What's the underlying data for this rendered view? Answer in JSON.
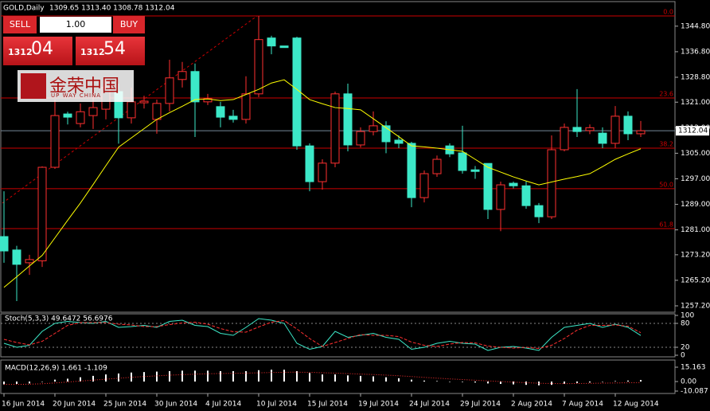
{
  "trade_panel": {
    "sell": "SELL",
    "lot": "1.00",
    "buy": "BUY",
    "bid_prefix": "1312",
    "bid_digits": "04",
    "ask_prefix": "1312",
    "ask_digits": "54"
  },
  "logo": {
    "name": "金荣中国",
    "tagline": "UP WAY CHINA"
  },
  "chart_data": [
    {
      "type": "candlestick",
      "title": "GOLD,Daily",
      "ohlc_text": "1309.65 1313.40 1308.78 1312.04",
      "categories": [
        "16 Jun 2014",
        null,
        null,
        null,
        "20 Jun 2014",
        null,
        null,
        null,
        "25 Jun 2014",
        null,
        null,
        null,
        "30 Jun 2014",
        null,
        null,
        null,
        "4 Jul 2014",
        null,
        null,
        null,
        "10 Jul 2014",
        null,
        null,
        null,
        "15 Jul 2014",
        null,
        null,
        null,
        "19 Jul 2014",
        null,
        null,
        null,
        "24 Jul 2014",
        null,
        null,
        null,
        "29 Jul 2014",
        null,
        null,
        null,
        "2 Aug 2014",
        null,
        null,
        null,
        "7 Aug 2014",
        null,
        null,
        null,
        "12 Aug 2014",
        null,
        null
      ],
      "open": [
        1278.9,
        1274.7,
        1270.7,
        1271.3,
        1300.6,
        1317.3,
        1314.3,
        1316.8,
        1318.8,
        1324.3,
        1316.1,
        1320.8,
        1315.6,
        1320.6,
        1328.1,
        1330.6,
        1321.1,
        1319.6,
        1316.6,
        1315.6,
        1323.6,
        1341.1,
        1338.6,
        1341.1,
        1307.3,
        1296.1,
        1301.9,
        1323.6,
        1307.6,
        1311.8,
        1313.6,
        1309.1,
        1308.1,
        1291.1,
        1298.6,
        1307.3,
        1305.1,
        1299.8,
        1301.8,
        1287.4,
        1295.6,
        1294.8,
        1288.6,
        1285.1,
        1306.1,
        1313.1,
        1312.1,
        1311.3,
        1308.1,
        1316.6,
        1311.1
      ],
      "high": [
        1293.1,
        1276.0,
        1273.2,
        1300.9,
        1321.8,
        1318.0,
        1320.6,
        1323.0,
        1328.0,
        1326.8,
        1325.6,
        1323.0,
        1321.8,
        1334.3,
        1333.6,
        1333.1,
        1323.6,
        1321.1,
        1318.6,
        1329.1,
        1348.0,
        1341.8,
        1338.6,
        1341.5,
        1308.1,
        1303.1,
        1324.3,
        1326.8,
        1313.1,
        1318.1,
        1315.0,
        1310.6,
        1308.6,
        1299.6,
        1304.3,
        1308.1,
        1313.6,
        1301.0,
        1301.8,
        1296.1,
        1296.1,
        1296.1,
        1289.4,
        1310.6,
        1314.3,
        1325.1,
        1314.0,
        1313.1,
        1319.8,
        1318.1,
        1315.1
      ],
      "low": [
        1270.7,
        1258.7,
        1266.9,
        1269.4,
        1300.1,
        1314.0,
        1313.1,
        1312.6,
        1315.6,
        1308.0,
        1314.3,
        1319.0,
        1311.1,
        1318.1,
        1325.6,
        1310.1,
        1320.1,
        1313.1,
        1314.6,
        1314.3,
        1322.6,
        1336.0,
        1338.1,
        1306.1,
        1293.1,
        1293.6,
        1300.6,
        1305.6,
        1306.8,
        1310.6,
        1305.0,
        1306.6,
        1288.1,
        1289.6,
        1297.6,
        1303.8,
        1298.6,
        1297.0,
        1284.4,
        1280.6,
        1294.0,
        1287.6,
        1283.1,
        1284.4,
        1305.6,
        1310.1,
        1311.0,
        1306.6,
        1306.6,
        1309.1,
        1310.1
      ],
      "close": [
        1274.4,
        1270.2,
        1271.7,
        1300.6,
        1316.8,
        1316.3,
        1318.0,
        1319.3,
        1325.6,
        1316.1,
        1321.1,
        1321.3,
        1320.6,
        1328.6,
        1330.6,
        1321.1,
        1322.1,
        1316.3,
        1315.6,
        1323.6,
        1340.6,
        1338.6,
        1338.1,
        1307.3,
        1296.1,
        1301.9,
        1323.6,
        1307.6,
        1311.8,
        1313.6,
        1308.6,
        1308.1,
        1291.1,
        1298.6,
        1303.1,
        1304.8,
        1299.6,
        1299.3,
        1287.4,
        1295.1,
        1294.8,
        1288.6,
        1285.1,
        1306.1,
        1313.1,
        1311.8,
        1313.0,
        1308.1,
        1316.6,
        1311.1,
        1312.04
      ],
      "up_color": "#000000",
      "up_border": "#ff3030",
      "down_color": "#3ce8c8",
      "ma": {
        "color": "#ffff00",
        "values": [
          1263,
          1266.3,
          1269.7,
          1273,
          1278.5,
          1284,
          1289.4,
          1295.2,
          1301.1,
          1306.9,
          1309.8,
          1312.7,
          1315.6,
          1317.7,
          1319.7,
          1321.8,
          1322,
          1321.5,
          1321.8,
          1323.4,
          1325,
          1327,
          1328,
          1325,
          1321.8,
          1320.5,
          1319.3,
          1319,
          1318.6,
          1315.8,
          1313,
          1310.2,
          1307.3,
          1307,
          1306.6,
          1306.1,
          1305.6,
          1303.1,
          1300.6,
          1299.1,
          1297.6,
          1296.3,
          1295.1,
          1296,
          1296.9,
          1297.7,
          1298.6,
          1300.8,
          1303.1,
          1304.8,
          1306.4
        ]
      },
      "levels": [
        {
          "value": 1348.0,
          "label": "0.0"
        },
        {
          "value": 1322.3,
          "label": "23.6"
        },
        {
          "value": 1306.6,
          "label": "38.2"
        },
        {
          "value": 1293.9,
          "label": "50.0"
        },
        {
          "value": 1281.4,
          "label": "61.8"
        }
      ],
      "level_color": "#cc0000",
      "current_price": 1312.04,
      "ylim": [
        1255.2,
        1351.5
      ],
      "yticks": [
        {
          "value": 1344.8,
          "label": "1344.80"
        },
        {
          "value": 1336.8,
          "label": "1336.80"
        },
        {
          "value": 1328.8,
          "label": "1328.80"
        },
        {
          "value": 1321.0,
          "label": "1321.00"
        },
        {
          "value": 1313.0,
          "label": "1313.00"
        },
        {
          "value": 1305.0,
          "label": "1305.00"
        },
        {
          "value": 1297.0,
          "label": "1297.00"
        },
        {
          "value": 1289.0,
          "label": "1289.00"
        },
        {
          "value": 1281.0,
          "label": "1281.00"
        },
        {
          "value": 1273.2,
          "label": "1273.20"
        },
        {
          "value": 1265.2,
          "label": "1265.20"
        },
        {
          "value": 1257.2,
          "label": "1257.20"
        }
      ]
    },
    {
      "type": "stochastic",
      "title": "Stoch(5,3,3) 49.6472 56.6976",
      "ylim": [
        0,
        100
      ],
      "yticks": [
        100,
        80,
        20,
        0
      ],
      "levels": [
        80,
        20
      ],
      "series": [
        {
          "color": "#3ce8c8",
          "values": [
            30,
            20,
            25,
            60,
            80,
            85,
            82,
            80,
            85,
            70,
            72,
            75,
            70,
            85,
            88,
            75,
            72,
            55,
            50,
            70,
            92,
            88,
            80,
            30,
            15,
            22,
            60,
            45,
            50,
            55,
            45,
            40,
            15,
            20,
            30,
            35,
            30,
            28,
            12,
            20,
            22,
            18,
            12,
            45,
            70,
            75,
            80,
            70,
            78,
            70,
            49.6472
          ]
        },
        {
          "color": "#ff3030",
          "dashed": true,
          "values": [
            40,
            32,
            26,
            35,
            55,
            75,
            82,
            82,
            82,
            78,
            76,
            72,
            72,
            77,
            81,
            83,
            78,
            67,
            59,
            58,
            71,
            83,
            87,
            66,
            42,
            22,
            32,
            42,
            52,
            50,
            50,
            47,
            33,
            25,
            22,
            28,
            32,
            31,
            23,
            20,
            18,
            20,
            17,
            25,
            42,
            63,
            75,
            75,
            76,
            73,
            56.6976
          ]
        }
      ]
    },
    {
      "type": "macd",
      "title": "MACD(12,26,9) 1.661 -1.109",
      "ylim": [
        -12.6,
        20.2
      ],
      "yticks": [
        15.163,
        {
          "value": 0,
          "label": "0.00"
        },
        -10.087
      ],
      "histogram": {
        "color": "#ffffff",
        "values": [
          -3,
          -2.5,
          -2,
          0,
          2,
          3,
          4.5,
          6,
          7.5,
          8.5,
          9.5,
          10,
          10.5,
          11,
          11.5,
          11.5,
          11.5,
          11,
          11,
          11,
          12,
          12.5,
          12.5,
          11,
          9,
          7.5,
          7.5,
          6.5,
          6,
          5.5,
          4.5,
          3.5,
          2,
          1,
          0.5,
          0,
          -0.5,
          -1,
          -2,
          -2.5,
          -3,
          -3.5,
          -4,
          -3.5,
          -2.5,
          -1.5,
          -1,
          -0.3,
          0.5,
          1,
          1.661
        ]
      },
      "signal": {
        "color": "#ff3030",
        "values": [
          -3,
          -3,
          -2.8,
          -2.3,
          -1.5,
          -0.5,
          0.5,
          1.5,
          2.5,
          3.5,
          4.5,
          5.3,
          6,
          6.7,
          7.3,
          7.8,
          8.2,
          8.5,
          8.7,
          8.9,
          9.2,
          9.5,
          9.8,
          9.9,
          9.7,
          9.3,
          8.9,
          8.4,
          7.9,
          7.4,
          6.8,
          6.1,
          5.3,
          4.4,
          3.6,
          2.8,
          2.1,
          1.4,
          0.7,
          0,
          -0.6,
          -1.2,
          -1.8,
          -2.1,
          -2.2,
          -2.1,
          -1.9,
          -1.7,
          -1.5,
          -1.3,
          -1.109
        ]
      }
    }
  ]
}
